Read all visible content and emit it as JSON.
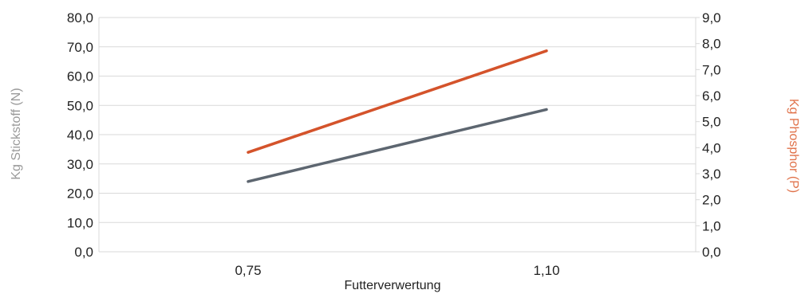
{
  "chart_data": {
    "type": "line",
    "x": [
      "0,75",
      "1,10"
    ],
    "xlabel": "Futterverwertung",
    "ylabel_left": "Kg Stickstoff (N)",
    "ylabel_right": "Kg Phosphor (P)",
    "ylim_left": [
      0,
      80
    ],
    "ylim_right": [
      0,
      9
    ],
    "yticks_left": [
      "0,0",
      "10,0",
      "20,0",
      "30,0",
      "40,0",
      "50,0",
      "60,0",
      "70,0",
      "80,0"
    ],
    "yticks_right": [
      "0,0",
      "1,0",
      "2,0",
      "3,0",
      "4,0",
      "5,0",
      "6,0",
      "7,0",
      "8,0",
      "9,0"
    ],
    "grid": true,
    "legend": "none",
    "series": [
      {
        "axis": "left",
        "color": "#5d6670",
        "values": [
          24.0,
          48.6
        ]
      },
      {
        "axis": "right",
        "color": "#d4532b",
        "values": [
          3.82,
          7.72
        ]
      }
    ],
    "colors": {
      "left_axis_title": "#9a9a9a",
      "right_axis_title": "#e0724a",
      "grid": "#d9d9d9"
    }
  }
}
